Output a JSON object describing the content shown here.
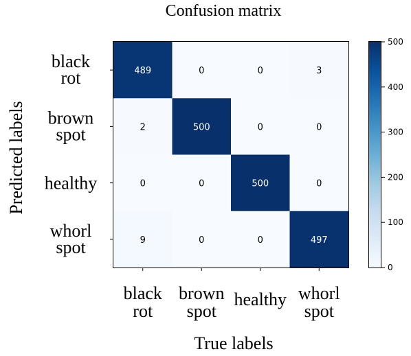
{
  "chart_data": {
    "type": "heatmap",
    "title": "Confusion matrix",
    "xlabel": "True labels",
    "ylabel": "Predicted labels",
    "x_categories": [
      [
        "black",
        "rot"
      ],
      [
        "brown",
        "spot"
      ],
      [
        "healthy"
      ],
      [
        "whorl",
        "spot"
      ]
    ],
    "y_categories": [
      [
        "black",
        "rot"
      ],
      [
        "brown",
        "spot"
      ],
      [
        "healthy"
      ],
      [
        "whorl",
        "spot"
      ]
    ],
    "matrix": [
      [
        489,
        0,
        0,
        3
      ],
      [
        2,
        500,
        0,
        0
      ],
      [
        0,
        0,
        500,
        0
      ],
      [
        9,
        0,
        0,
        497
      ]
    ],
    "colorbar": {
      "min": 0,
      "max": 500,
      "ticks": [
        0,
        100,
        200,
        300,
        400,
        500
      ],
      "colormap": "Blues",
      "low_color": "#f7fbff",
      "high_color": "#08306b"
    }
  }
}
